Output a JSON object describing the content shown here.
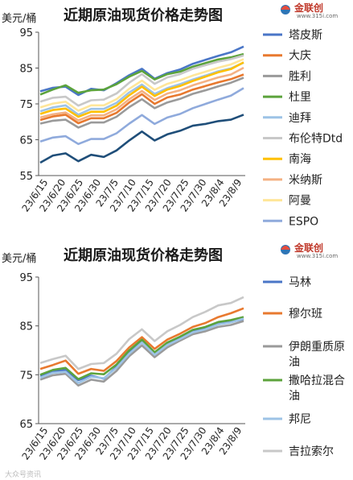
{
  "logo": {
    "name": "金联创",
    "url": "www.315i.com"
  },
  "watermark": "大众号资讯",
  "chart_data": [
    {
      "type": "line",
      "title": "近期原油现货价格走势图",
      "unit_label": "美元/桶",
      "ylim": [
        55,
        95
      ],
      "yticks": [
        55,
        65,
        75,
        85,
        95
      ],
      "x_tick_labels": [
        "23/6/15",
        "23/6/20",
        "23/6/25",
        "23/6/30",
        "23/7/5",
        "23/7/10",
        "23/7/15",
        "23/7/20",
        "23/7/25",
        "23/7/30",
        "23/8/4",
        "23/8/9"
      ],
      "grid": false,
      "legend_position": "right",
      "series": [
        {
          "name": "塔皮斯",
          "color": "#4a76c7",
          "values": [
            78.5,
            79.5,
            79.8,
            77.5,
            79.2,
            78.8,
            80.8,
            83.0,
            84.8,
            82.0,
            83.6,
            84.6,
            86.2,
            87.3,
            88.4,
            89.4,
            91.0
          ]
        },
        {
          "name": "大庆",
          "color": "#e8792f",
          "values": [
            70.5,
            71.5,
            72.0,
            69.6,
            71.0,
            71.0,
            72.5,
            75.4,
            77.7,
            75.0,
            76.8,
            77.6,
            79.0,
            80.0,
            81.0,
            81.9,
            83.2
          ]
        },
        {
          "name": "胜利",
          "color": "#9a9a9a",
          "values": [
            69.5,
            70.3,
            70.6,
            68.4,
            69.8,
            69.8,
            71.4,
            74.1,
            76.3,
            73.8,
            75.4,
            76.4,
            77.8,
            78.8,
            79.9,
            80.9,
            82.3
          ]
        },
        {
          "name": "杜里",
          "color": "#5ca33c",
          "values": [
            77.6,
            79.0,
            80.2,
            78.1,
            78.8,
            79.0,
            80.5,
            82.6,
            84.2,
            81.8,
            83.3,
            84.0,
            85.4,
            86.4,
            87.4,
            88.0,
            88.9
          ]
        },
        {
          "name": "迪拜",
          "color": "#9dc3e6",
          "values": [
            72.9,
            74.0,
            74.6,
            72.0,
            73.6,
            73.6,
            75.3,
            78.2,
            80.4,
            77.8,
            79.4,
            80.5,
            81.8,
            82.9,
            84.1,
            84.9,
            86.5
          ]
        },
        {
          "name": "布伦特Dtd",
          "color": "#c8c8c8",
          "values": [
            75.6,
            76.7,
            77.0,
            74.5,
            76.0,
            76.2,
            77.9,
            80.9,
            83.3,
            80.6,
            82.4,
            83.3,
            84.8,
            85.8,
            86.8,
            87.5,
            88.5
          ]
        },
        {
          "name": "南海",
          "color": "#ffc000",
          "values": [
            72.2,
            73.3,
            73.7,
            71.4,
            72.8,
            72.8,
            74.5,
            77.4,
            79.8,
            77.2,
            79.0,
            80.0,
            81.4,
            82.6,
            83.8,
            84.7,
            86.6
          ]
        },
        {
          "name": "米纳斯",
          "color": "#f4b183",
          "values": [
            71.2,
            72.1,
            72.6,
            70.4,
            71.8,
            71.8,
            73.5,
            76.3,
            78.6,
            76.1,
            77.9,
            78.8,
            80.2,
            81.3,
            82.4,
            83.2,
            85.1
          ]
        },
        {
          "name": "阿曼",
          "color": "#ffe699",
          "values": [
            74.0,
            75.1,
            75.6,
            73.1,
            74.6,
            74.6,
            76.3,
            79.2,
            81.5,
            78.9,
            80.6,
            81.6,
            82.9,
            84.0,
            85.1,
            86.0,
            87.5
          ]
        },
        {
          "name": "ESPO",
          "color": "#8faadc",
          "values": [
            64.5,
            65.6,
            66.0,
            63.8,
            65.2,
            65.2,
            66.8,
            69.5,
            71.9,
            69.4,
            71.2,
            72.2,
            73.8,
            75.0,
            76.2,
            77.3,
            79.4
          ]
        },
        {
          "name": "",
          "color": "#1f4e79",
          "values": [
            58.6,
            60.6,
            61.2,
            59.0,
            60.8,
            60.2,
            62.0,
            64.8,
            67.3,
            64.8,
            66.5,
            67.5,
            68.9,
            69.4,
            70.2,
            70.6,
            72.0
          ]
        }
      ]
    },
    {
      "type": "line",
      "title": "近期原油现货价格走势图",
      "unit_label": "美元/桶",
      "ylim": [
        65,
        95
      ],
      "yticks": [
        65,
        75,
        85,
        95
      ],
      "x_tick_labels": [
        "23/6/15",
        "23/6/20",
        "23/6/25",
        "23/6/30",
        "23/7/5",
        "23/7/10",
        "23/7/15",
        "23/7/20",
        "23/7/25",
        "23/7/30",
        "23/8/4",
        "23/8/9"
      ],
      "grid": false,
      "legend_position": "right",
      "series": [
        {
          "name": "马林",
          "color": "#4a76c7",
          "values": [
            74.8,
            75.6,
            76.0,
            73.9,
            74.8,
            74.2,
            76.6,
            79.5,
            81.9,
            79.2,
            81.4,
            82.5,
            84.1,
            84.5,
            85.4,
            85.8,
            86.4
          ]
        },
        {
          "name": "穆尔班",
          "color": "#e8792f",
          "values": [
            76.2,
            77.0,
            77.9,
            75.2,
            76.2,
            75.8,
            77.8,
            80.6,
            82.7,
            80.3,
            82.2,
            83.4,
            84.8,
            85.6,
            86.8,
            87.6,
            88.6
          ]
        },
        {
          "name": "伊朗重质原油",
          "color": "#9a9a9a",
          "values": [
            74.0,
            74.9,
            75.2,
            72.8,
            74.0,
            73.6,
            75.8,
            78.8,
            81.0,
            78.6,
            80.6,
            82.0,
            83.3,
            83.9,
            84.8,
            85.2,
            86.0
          ]
        },
        {
          "name": "撒哈拉混合油",
          "color": "#5ca33c",
          "values": [
            75.0,
            76.0,
            76.4,
            74.1,
            75.3,
            75.1,
            77.1,
            80.0,
            82.2,
            79.6,
            81.6,
            82.8,
            84.2,
            84.8,
            85.8,
            86.2,
            86.8
          ]
        },
        {
          "name": "邦尼",
          "color": "#9dc3e6",
          "values": [
            74.4,
            75.4,
            75.6,
            73.3,
            74.6,
            74.3,
            76.4,
            79.3,
            81.6,
            79.1,
            81.1,
            82.3,
            83.7,
            84.3,
            85.3,
            85.7,
            86.5
          ]
        },
        {
          "name": "吉拉索尔",
          "color": "#c8c8c8",
          "values": [
            77.4,
            78.2,
            78.9,
            76.2,
            77.2,
            77.4,
            79.3,
            82.3,
            84.3,
            81.9,
            83.9,
            85.2,
            86.8,
            87.9,
            89.2,
            89.7,
            90.9
          ]
        }
      ]
    }
  ]
}
